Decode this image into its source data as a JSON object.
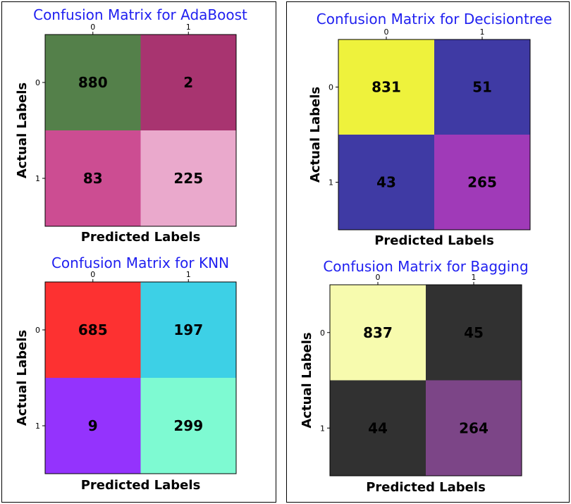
{
  "chart_data": [
    {
      "type": "heatmap",
      "title": "Confusion Matrix for AdaBoost",
      "xlabel": "Predicted Labels",
      "ylabel": "Actual Labels",
      "x_ticks": [
        "0",
        "1"
      ],
      "y_ticks": [
        "0",
        "1"
      ],
      "values": [
        [
          880,
          2
        ],
        [
          83,
          225
        ]
      ],
      "cell_colors": [
        [
          "#54804a",
          "#a83470"
        ],
        [
          "#cc4d92",
          "#eaa9cc"
        ]
      ]
    },
    {
      "type": "heatmap",
      "title": "Confusion Matrix for Decisiontree",
      "xlabel": "Predicted Labels",
      "ylabel": "Actual Labels",
      "x_ticks": [
        "0",
        "1"
      ],
      "y_ticks": [
        "0",
        "1"
      ],
      "values": [
        [
          831,
          51
        ],
        [
          43,
          265
        ]
      ],
      "cell_colors": [
        [
          "#eef23c",
          "#3f3aa4"
        ],
        [
          "#3f3aa4",
          "#a03ab8"
        ]
      ]
    },
    {
      "type": "heatmap",
      "title": "Confusion Matrix for KNN",
      "xlabel": "Predicted Labels",
      "ylabel": "Actual Labels",
      "x_ticks": [
        "0",
        "1"
      ],
      "y_ticks": [
        "0",
        "1"
      ],
      "values": [
        [
          685,
          197
        ],
        [
          9,
          299
        ]
      ],
      "cell_colors": [
        [
          "#fd3131",
          "#3dd0e6"
        ],
        [
          "#9433fd",
          "#7efad2"
        ]
      ]
    },
    {
      "type": "heatmap",
      "title": "Confusion Matrix for Bagging",
      "xlabel": "Predicted Labels",
      "ylabel": "Actual Labels",
      "x_ticks": [
        "0",
        "1"
      ],
      "y_ticks": [
        "0",
        "1"
      ],
      "values": [
        [
          837,
          45
        ],
        [
          44,
          264
        ]
      ],
      "cell_colors": [
        [
          "#f7fbae",
          "#313131"
        ],
        [
          "#313131",
          "#7c4587"
        ]
      ]
    }
  ]
}
